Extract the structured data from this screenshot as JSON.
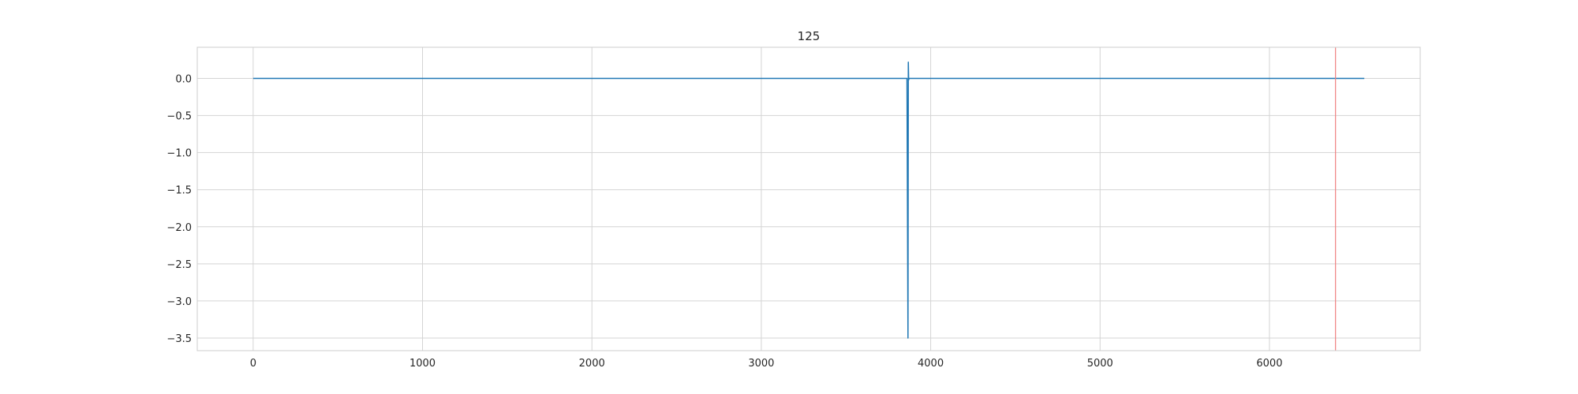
{
  "chart_data": {
    "type": "line",
    "title": "125",
    "xlabel": "",
    "ylabel": "",
    "xlim": [
      -330,
      6890
    ],
    "ylim": [
      -3.67,
      0.42
    ],
    "x_ticks": [
      0,
      1000,
      2000,
      3000,
      4000,
      5000,
      6000
    ],
    "y_ticks": [
      0.0,
      -0.5,
      -1.0,
      -1.5,
      -2.0,
      -2.5,
      -3.0,
      -3.5
    ],
    "grid": true,
    "series": [
      {
        "color": "#1f77b4",
        "x": [
          0,
          3860,
          3866,
          3868,
          3870,
          3872,
          3880,
          6560
        ],
        "y": [
          0.0,
          0.0,
          -3.5,
          0.22,
          -0.02,
          0.0,
          0.0,
          0.0
        ]
      }
    ],
    "vlines": [
      {
        "x": 6390,
        "color": "#f08080"
      }
    ],
    "colors": {
      "grid": "#d4d4d4",
      "frame": "#cccccc",
      "text": "#262626"
    }
  }
}
